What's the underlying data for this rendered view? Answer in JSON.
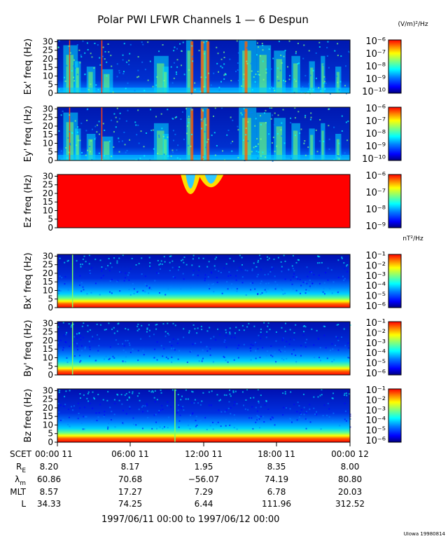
{
  "title": "Polar PWI LFWR Channels 1 — 6 Despun",
  "footer_range": "1997/06/11 00:00 to 1997/06/12 00:00",
  "credit": "UIowa 19980814",
  "colors": {
    "jet": [
      "#00007f",
      "#0000ff",
      "#007fff",
      "#00ffff",
      "#7fff7f",
      "#ffff00",
      "#ff7f00",
      "#ff0000"
    ],
    "spike": "#ff4010"
  },
  "chart_data": [
    {
      "type": "heatmap",
      "ylabel": "Ex' freq (Hz)",
      "ylim": [
        0,
        31
      ],
      "yticks": [
        "0",
        "5",
        "10",
        "15",
        "20",
        "25",
        "30"
      ],
      "colorbar": {
        "unit": "(V/m)²/Hz",
        "labels": [
          "10⁻⁶",
          "10⁻⁷",
          "10⁻⁸",
          "10⁻⁹",
          "10⁻¹⁰"
        ]
      }
    },
    {
      "type": "heatmap",
      "ylabel": "Ey' freq (Hz)",
      "ylim": [
        0,
        31
      ],
      "yticks": [
        "0",
        "5",
        "10",
        "15",
        "20",
        "25",
        "30"
      ],
      "colorbar": {
        "unit": "",
        "labels": [
          "10⁻⁶",
          "10⁻⁷",
          "10⁻⁸",
          "10⁻⁹",
          "10⁻¹⁰"
        ]
      }
    },
    {
      "type": "heatmap",
      "ylabel": "Ez freq (Hz)",
      "ylim": [
        0,
        31
      ],
      "yticks": [
        "0",
        "5",
        "10",
        "15",
        "20",
        "25",
        "30"
      ],
      "colorbar": {
        "unit": "",
        "labels": [
          "10⁻⁶",
          "10⁻⁷",
          "10⁻⁸",
          "10⁻⁹"
        ]
      }
    },
    {
      "type": "heatmap",
      "ylabel": "Bx' freq (Hz)",
      "ylim": [
        0,
        31
      ],
      "yticks": [
        "0",
        "5",
        "10",
        "15",
        "20",
        "25",
        "30"
      ],
      "colorbar": {
        "unit": "nT²/Hz",
        "labels": [
          "10⁻¹",
          "10⁻²",
          "10⁻³",
          "10⁻⁴",
          "10⁻⁵",
          "10⁻⁶"
        ]
      }
    },
    {
      "type": "heatmap",
      "ylabel": "By' freq (Hz)",
      "ylim": [
        0,
        31
      ],
      "yticks": [
        "0",
        "5",
        "10",
        "15",
        "20",
        "25",
        "30"
      ],
      "colorbar": {
        "unit": "",
        "labels": [
          "10⁻¹",
          "10⁻²",
          "10⁻³",
          "10⁻⁴",
          "10⁻⁵",
          "10⁻⁶"
        ]
      }
    },
    {
      "type": "heatmap",
      "ylabel": "Bz freq (Hz)",
      "ylim": [
        0,
        31
      ],
      "yticks": [
        "0",
        "5",
        "10",
        "15",
        "20",
        "25",
        "30"
      ],
      "colorbar": {
        "unit": "",
        "labels": [
          "10⁻¹",
          "10⁻²",
          "10⁻³",
          "10⁻⁴",
          "10⁻⁵",
          "10⁻⁶"
        ]
      }
    }
  ],
  "time_axis": {
    "row_label": "SCET",
    "ticks": [
      "00:00 11",
      "06:00 11",
      "12:00 11",
      "18:00 11",
      "00:00 12"
    ]
  },
  "ephemeris": [
    {
      "label": "R",
      "sub": "E",
      "values": [
        "8.20",
        "8.17",
        "1.95",
        "8.35",
        "8.00"
      ]
    },
    {
      "label": "λ",
      "sub": "m",
      "values": [
        "60.86",
        "70.68",
        "−56.07",
        "74.19",
        "80.80"
      ]
    },
    {
      "label": "MLT",
      "sub": "",
      "values": [
        "8.57",
        "17.27",
        "7.29",
        "6.78",
        "20.03"
      ]
    },
    {
      "label": "L",
      "sub": "",
      "values": [
        "34.33",
        "74.25",
        "6.44",
        "111.96",
        "312.52"
      ]
    }
  ]
}
